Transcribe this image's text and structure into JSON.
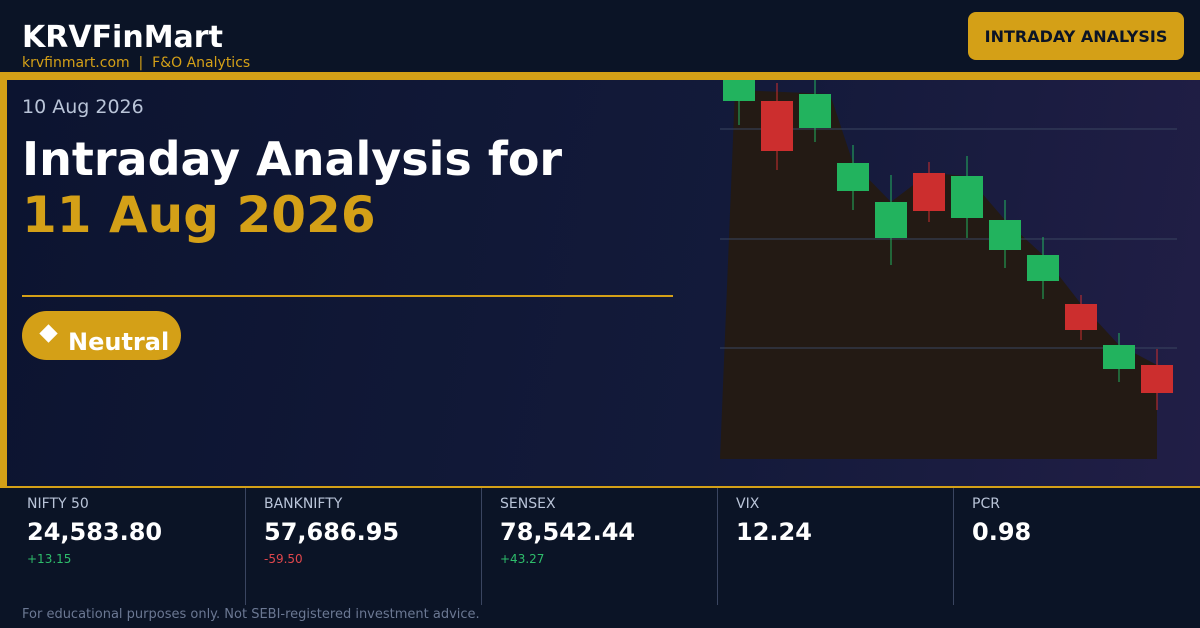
{
  "header": {
    "brand": "KRVFinMart",
    "tagline": "krvfinmart.com  |  F&O Analytics",
    "badge": "INTRADAY ANALYSIS"
  },
  "hero": {
    "date": "10 Aug 2026",
    "title": "Intraday Analysis for",
    "target_date": "11 Aug 2026",
    "sentiment": "Neutral"
  },
  "tickers": [
    {
      "name": "NIFTY 50",
      "value": "24,583.80",
      "change": "+13.15"
    },
    {
      "name": "BANKNIFTY",
      "value": "57,686.95",
      "change": "-59.50"
    },
    {
      "name": "SENSEX",
      "value": "78,542.44",
      "change": "+43.27"
    },
    {
      "name": "VIX",
      "value": "12.24"
    },
    {
      "name": "PCR",
      "value": "0.98"
    }
  ],
  "footer": {
    "disclaimer": "For educational purposes only. Not SEBI-registered investment advice."
  }
}
